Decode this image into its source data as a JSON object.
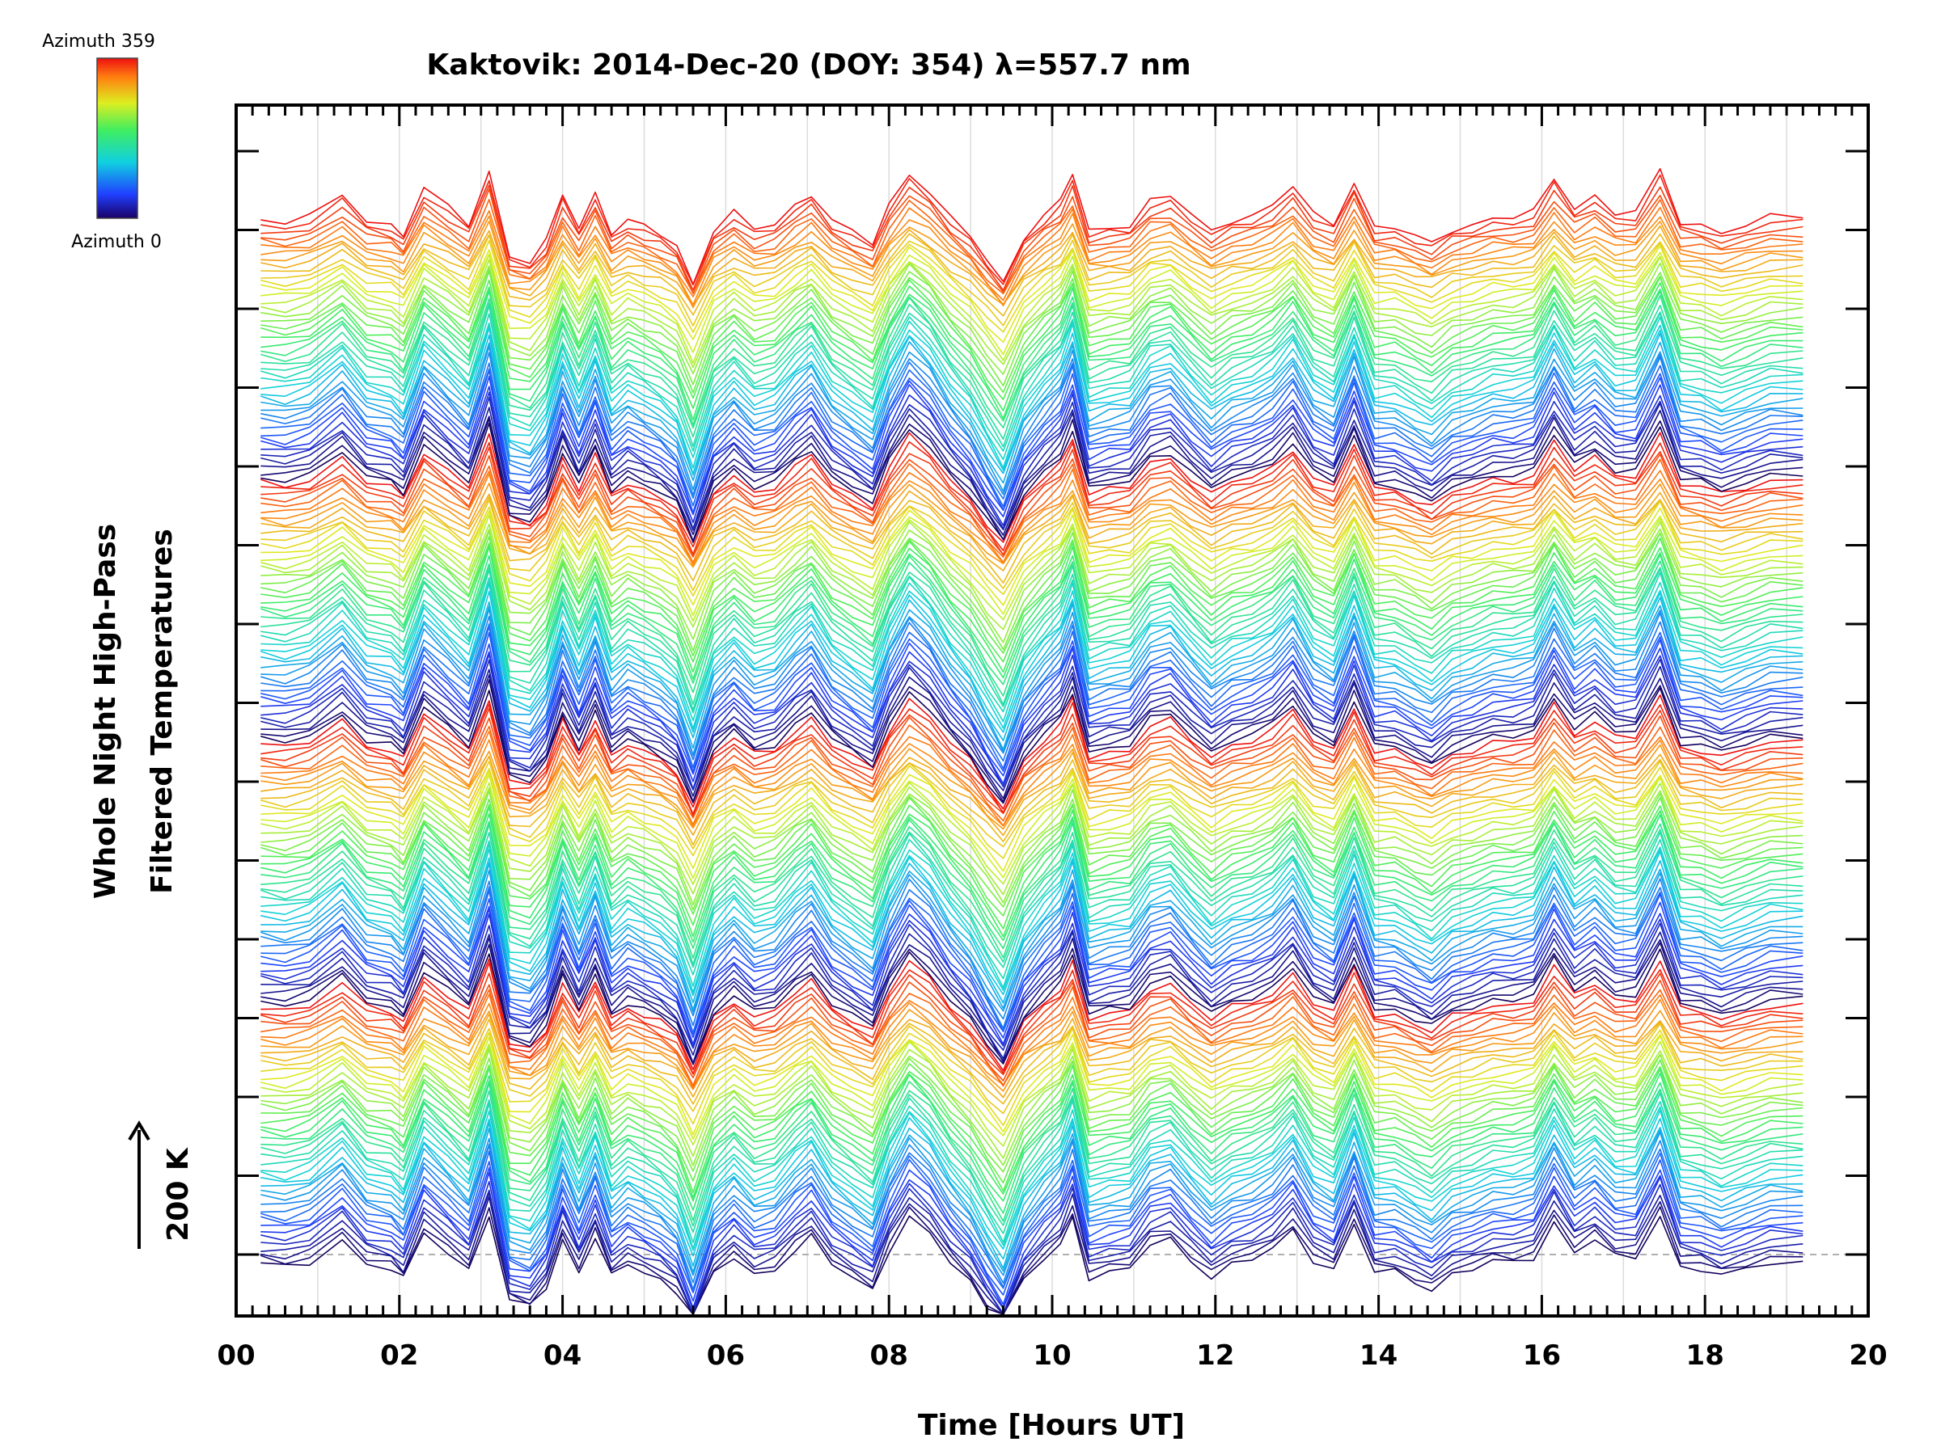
{
  "chart_data": {
    "type": "line",
    "title": "Kaktovik: 2014-Dec-20 (DOY: 354) λ=557.7 nm",
    "xlabel": "Time [Hours UT]",
    "ylabel": [
      "Whole Night High-Pass",
      "Filtered Temperatures"
    ],
    "xlim": [
      0,
      20
    ],
    "x_tick_labels": [
      "00",
      "02",
      "04",
      "06",
      "08",
      "10",
      "12",
      "14",
      "16",
      "18",
      "20"
    ],
    "scale_bar": {
      "label": "200 K",
      "value_K": 200
    },
    "legend": {
      "top_label": "Azimuth 359",
      "bottom_label": "Azimuth 0",
      "colormap": "rainbow"
    },
    "colors": {
      "reference_line": "#b0b0b0",
      "grid": "#dcdcdc"
    },
    "series_description": "Stacked high-pass filtered temperature traces, one per azimuth (0-359), offset vertically; colored by azimuth",
    "series_count": 180,
    "time_range_hours": [
      0.3,
      19.2
    ],
    "times": [
      0.3,
      0.6,
      0.9,
      1.3,
      1.6,
      1.9,
      2.05,
      2.3,
      2.6,
      2.85,
      3.1,
      3.35,
      3.6,
      3.8,
      4.0,
      4.2,
      4.4,
      4.6,
      4.8,
      5.0,
      5.2,
      5.4,
      5.6,
      5.85,
      6.1,
      6.35,
      6.6,
      6.85,
      7.05,
      7.3,
      7.55,
      7.8,
      8.0,
      8.25,
      8.5,
      8.75,
      9.0,
      9.2,
      9.4,
      9.65,
      9.9,
      10.1,
      10.25,
      10.45,
      10.7,
      10.95,
      11.2,
      11.45,
      11.7,
      11.95,
      12.2,
      12.45,
      12.7,
      12.95,
      13.2,
      13.45,
      13.7,
      13.95,
      14.2,
      14.45,
      14.65,
      14.9,
      15.15,
      15.4,
      15.65,
      15.9,
      16.15,
      16.4,
      16.65,
      16.9,
      17.15,
      17.45,
      17.7,
      17.95,
      18.2,
      18.5,
      18.8,
      19.2
    ],
    "common_signal_K": [
      -40,
      -50,
      -30,
      60,
      -40,
      -60,
      -100,
      90,
      10,
      -60,
      160,
      -190,
      -210,
      -130,
      60,
      -70,
      70,
      -90,
      -40,
      -70,
      -100,
      -150,
      -300,
      -80,
      -10,
      -80,
      -60,
      20,
      70,
      -40,
      -90,
      -140,
      20,
      150,
      80,
      -30,
      -110,
      -210,
      -300,
      -110,
      -20,
      40,
      150,
      -90,
      -70,
      -60,
      40,
      60,
      -20,
      -90,
      -40,
      -20,
      20,
      100,
      -20,
      -60,
      120,
      -70,
      -70,
      -110,
      -140,
      -80,
      -60,
      -30,
      -30,
      -10,
      130,
      10,
      60,
      -10,
      -10,
      160,
      -50,
      -60,
      -90,
      -60,
      -30,
      -30
    ]
  }
}
